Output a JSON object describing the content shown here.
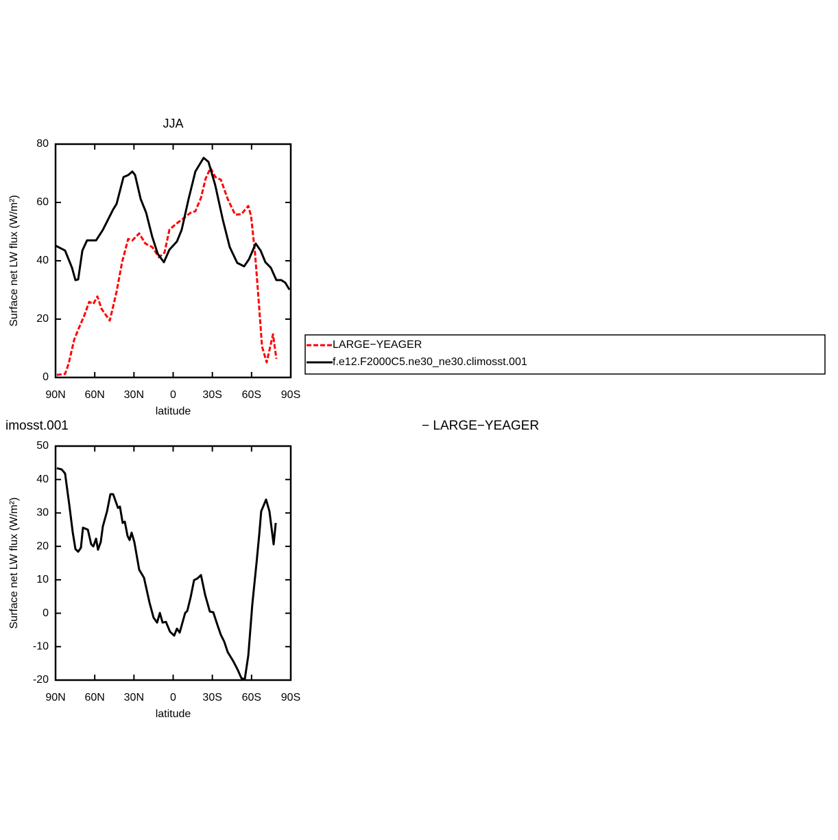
{
  "chart_data": [
    {
      "type": "line",
      "title": "JJA",
      "xlabel": "latitude",
      "ylabel": "Surface net LW flux (W/m²)",
      "xlim": [
        90,
        -90
      ],
      "xticks": [
        {
          "value": 90,
          "label": "90N"
        },
        {
          "value": 60,
          "label": "60N"
        },
        {
          "value": 30,
          "label": "30N"
        },
        0,
        {
          "value": -30,
          "label": "30S"
        },
        {
          "value": -60,
          "label": "60S"
        },
        {
          "value": -90,
          "label": "90S"
        }
      ],
      "ylim": [
        0,
        80
      ],
      "yticks": [
        0,
        20,
        40,
        60,
        80
      ],
      "legend": "right",
      "series": [
        {
          "name": "LARGE−YEAGER",
          "color": "#ff0000",
          "dashed": true,
          "x": [
            89,
            82.7,
            80,
            75.8,
            72.2,
            68,
            64.3,
            61.1,
            58,
            54.8,
            48.5,
            43.3,
            39.1,
            34.4,
            31.2,
            26,
            21.3,
            16,
            10.8,
            6.6,
            2.9,
            -1.8,
            -6.6,
            -13.4,
            -17,
            -21.3,
            -24.9,
            -28.6,
            -32.3,
            -36.5,
            -41.7,
            -47.5,
            -52.2,
            -57.5,
            -59.6,
            -62.7,
            -65.9,
            -68,
            -71.6,
            -76.4,
            -79
          ],
          "values": [
            0.9,
            1.2,
            4.7,
            12.9,
            16.9,
            21.2,
            25.9,
            25.2,
            27.8,
            23.5,
            19.5,
            29.4,
            39.5,
            47.5,
            47,
            49.4,
            45.9,
            44.7,
            41.2,
            42.8,
            50.6,
            52.5,
            54.1,
            56.5,
            57,
            61.6,
            68.2,
            71.8,
            68.7,
            67.8,
            61.2,
            55.8,
            56,
            58.8,
            55.3,
            42.4,
            23.5,
            10.6,
            5.2,
            14.8,
            6.4
          ]
        },
        {
          "name": "f.e12.F2000C5.ne30_ne30.climosst.001",
          "color": "#000000",
          "dashed": false,
          "x": [
            90,
            82.7,
            77.4,
            74.8,
            72.7,
            69.5,
            65.9,
            59,
            53.8,
            45.9,
            43.3,
            38,
            34.4,
            31.2,
            29.1,
            24.9,
            20.7,
            16,
            11.8,
            7.1,
            2.9,
            -2.9,
            -6.5,
            -11.8,
            -17,
            -23.3,
            -27,
            -32.2,
            -38,
            -43.3,
            -49,
            -54.3,
            -58,
            -63.2,
            -66.9,
            -70.6,
            -74.8,
            -79,
            -82.7,
            -85.8,
            -89
          ],
          "values": [
            45.2,
            43.5,
            37.6,
            33.4,
            33.6,
            43.5,
            47,
            47,
            50.6,
            57.6,
            59.5,
            68.7,
            69.4,
            70.6,
            69.4,
            61.2,
            56.5,
            48.2,
            42.4,
            39.5,
            43.8,
            46.6,
            50.6,
            61.2,
            70.6,
            75.3,
            73.9,
            65.9,
            54.1,
            44.7,
            39.3,
            38.1,
            40.5,
            45.9,
            43.5,
            39.5,
            37.6,
            33.4,
            33.4,
            32.5,
            30.1
          ]
        }
      ]
    },
    {
      "type": "line",
      "title_left": "imosst.001",
      "title_right": "− LARGE−YEAGER",
      "xlabel": "latitude",
      "ylabel": "Surface net LW flux (W/m²)",
      "xlim": [
        90,
        -90
      ],
      "xticks": [
        {
          "value": 90,
          "label": "90N"
        },
        {
          "value": 60,
          "label": "60N"
        },
        {
          "value": 30,
          "label": "30N"
        },
        0,
        {
          "value": -30,
          "label": "30S"
        },
        {
          "value": -60,
          "label": "60S"
        },
        {
          "value": -90,
          "label": "90S"
        }
      ],
      "ylim": [
        -20,
        50
      ],
      "yticks": [
        -20,
        -10,
        0,
        10,
        20,
        30,
        40,
        50
      ],
      "series": [
        {
          "color": "#000000",
          "dashed": false,
          "x": [
            89,
            85.3,
            82.7,
            79.5,
            76.9,
            74.8,
            72.7,
            70.6,
            69,
            65.3,
            62.7,
            61.1,
            59,
            57.5,
            55.4,
            53.8,
            50.6,
            48,
            45.9,
            42.2,
            40.7,
            38.6,
            37,
            34.9,
            33.3,
            31.8,
            29.7,
            26,
            22.3,
            18.1,
            15,
            12.3,
            10.2,
            8.1,
            5.5,
            2.4,
            -0.8,
            -2.9,
            -5,
            -9.2,
            -10.8,
            -13.4,
            -16,
            -18.6,
            -21.3,
            -24.4,
            -28.1,
            -30.7,
            -33.8,
            -36.5,
            -39.1,
            -41.7,
            -45.9,
            -49.1,
            -52.2,
            -54.8,
            -57.5,
            -60.6,
            -63.8,
            -65.9,
            -67.4,
            -71.1,
            -73.7,
            -76.9,
            -78.5
          ],
          "values": [
            43.4,
            43,
            41.8,
            32.5,
            24.3,
            19.2,
            18.4,
            19.6,
            25.6,
            25,
            20.6,
            20,
            22.3,
            19,
            21.3,
            26,
            30.5,
            35.6,
            35.6,
            31.5,
            31.9,
            27,
            27.4,
            23.1,
            21.9,
            24.1,
            21.3,
            13,
            10.6,
            3.2,
            -1.3,
            -2.8,
            0.1,
            -2.8,
            -2.6,
            -5.5,
            -6.7,
            -4.6,
            -5.8,
            0.1,
            0.7,
            4.8,
            9.9,
            10.4,
            11.4,
            5.6,
            0.5,
            0.3,
            -3.4,
            -6.5,
            -8.5,
            -11.6,
            -14.3,
            -16.7,
            -19.4,
            -19.8,
            -12.6,
            2.8,
            15.1,
            23.7,
            30.5,
            34,
            30.5,
            20.6,
            27
          ]
        }
      ]
    }
  ]
}
